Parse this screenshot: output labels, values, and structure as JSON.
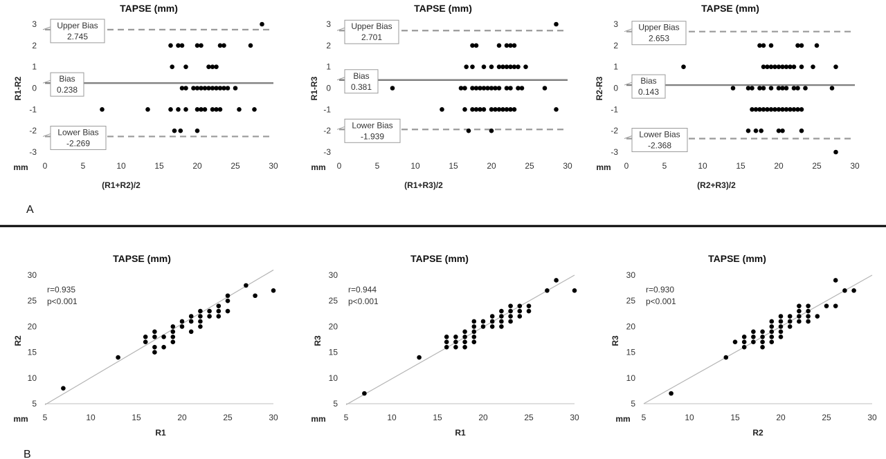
{
  "panel_labels": [
    "A",
    "B"
  ],
  "colors": {
    "points": "#000000",
    "bias_line": "#808080",
    "limit_line": "#999999",
    "fit_line": "#b4b4b4",
    "divider": "#000000"
  },
  "chart_data": [
    {
      "type": "scatter",
      "kind": "bland-altman",
      "title": "TAPSE (mm)",
      "xlabel": "(R1+R2)/2",
      "ylabel": "R1-R2",
      "unit_label": "mm",
      "xlim": [
        0,
        30
      ],
      "ylim": [
        -3,
        3
      ],
      "xticks": [
        "0",
        "5",
        "10",
        "15",
        "20",
        "25",
        "30"
      ],
      "yticks": [
        "-3",
        "-2",
        "-1",
        "0",
        "1",
        "2",
        "3"
      ],
      "bias_label": "Bias",
      "bias": "0.238",
      "upper_label": "Upper Bias",
      "upper": "2.745",
      "lower_label": "Lower Bias",
      "lower": "-2.269",
      "points": [
        [
          28.5,
          3
        ],
        [
          16.5,
          2
        ],
        [
          17.5,
          2
        ],
        [
          18,
          2
        ],
        [
          20,
          2
        ],
        [
          20.5,
          2
        ],
        [
          23,
          2
        ],
        [
          23.5,
          2
        ],
        [
          27,
          2
        ],
        [
          16.7,
          1
        ],
        [
          18.5,
          1
        ],
        [
          21.5,
          1
        ],
        [
          22,
          1
        ],
        [
          22.5,
          1
        ],
        [
          18,
          0
        ],
        [
          18.5,
          0
        ],
        [
          19.5,
          0
        ],
        [
          20,
          0
        ],
        [
          20.5,
          0
        ],
        [
          21,
          0
        ],
        [
          21.5,
          0
        ],
        [
          22,
          0
        ],
        [
          22.5,
          0
        ],
        [
          23,
          0
        ],
        [
          23.5,
          0
        ],
        [
          24,
          0
        ],
        [
          25,
          0
        ],
        [
          7.5,
          -1
        ],
        [
          13.5,
          -1
        ],
        [
          16.5,
          -1
        ],
        [
          17.5,
          -1
        ],
        [
          18.5,
          -1
        ],
        [
          20,
          -1
        ],
        [
          20.5,
          -1
        ],
        [
          21,
          -1
        ],
        [
          22,
          -1
        ],
        [
          22.5,
          -1
        ],
        [
          23,
          -1
        ],
        [
          25.5,
          -1
        ],
        [
          27.5,
          -1
        ],
        [
          17,
          -2
        ],
        [
          17.8,
          -2
        ],
        [
          20,
          -2
        ]
      ]
    },
    {
      "type": "scatter",
      "kind": "bland-altman",
      "title": "TAPSE (mm)",
      "xlabel": "(R1+R3)/2",
      "ylabel": "R1-R3",
      "unit_label": "mm",
      "xlim": [
        0,
        30
      ],
      "ylim": [
        -3,
        3
      ],
      "xticks": [
        "0",
        "5",
        "10",
        "15",
        "20",
        "25",
        "30"
      ],
      "yticks": [
        "-3",
        "-2",
        "-1",
        "0",
        "1",
        "2",
        "3"
      ],
      "bias_label": "Bias",
      "bias": "0.381",
      "upper_label": "Upper Bias",
      "upper": "2.701",
      "lower_label": "Lower Bias",
      "lower": "-1.939",
      "points": [
        [
          28.5,
          3
        ],
        [
          17.5,
          2
        ],
        [
          18,
          2
        ],
        [
          21,
          2
        ],
        [
          22,
          2
        ],
        [
          22.5,
          2
        ],
        [
          23,
          2
        ],
        [
          16.7,
          1
        ],
        [
          17.5,
          1
        ],
        [
          19,
          1
        ],
        [
          20,
          1
        ],
        [
          21,
          1
        ],
        [
          21.5,
          1
        ],
        [
          22,
          1
        ],
        [
          22.5,
          1
        ],
        [
          23,
          1
        ],
        [
          23.5,
          1
        ],
        [
          24.5,
          1
        ],
        [
          7,
          0
        ],
        [
          16,
          0
        ],
        [
          16.5,
          0
        ],
        [
          17.5,
          0
        ],
        [
          18,
          0
        ],
        [
          18.5,
          0
        ],
        [
          19,
          0
        ],
        [
          19.5,
          0
        ],
        [
          20,
          0
        ],
        [
          20.5,
          0
        ],
        [
          21,
          0
        ],
        [
          22,
          0
        ],
        [
          22.5,
          0
        ],
        [
          23.5,
          0
        ],
        [
          24,
          0
        ],
        [
          27,
          0
        ],
        [
          13.5,
          -1
        ],
        [
          16.5,
          -1
        ],
        [
          17.5,
          -1
        ],
        [
          18,
          -1
        ],
        [
          18.5,
          -1
        ],
        [
          19,
          -1
        ],
        [
          20,
          -1
        ],
        [
          20.5,
          -1
        ],
        [
          21,
          -1
        ],
        [
          21.5,
          -1
        ],
        [
          22,
          -1
        ],
        [
          22.5,
          -1
        ],
        [
          23,
          -1
        ],
        [
          28.5,
          -1
        ],
        [
          17,
          -2
        ],
        [
          20,
          -2
        ]
      ]
    },
    {
      "type": "scatter",
      "kind": "bland-altman",
      "title": "TAPSE (mm)",
      "xlabel": "(R2+R3)/2",
      "ylabel": "R2-R3",
      "unit_label": "mm",
      "xlim": [
        0,
        30
      ],
      "ylim": [
        -3,
        3
      ],
      "xticks": [
        "0",
        "5",
        "10",
        "15",
        "20",
        "25",
        "30"
      ],
      "yticks": [
        "-3",
        "-2",
        "-1",
        "0",
        "1",
        "2",
        "3"
      ],
      "bias_label": "Bias",
      "bias": "0.143",
      "upper_label": "Upper Bias",
      "upper": "2.653",
      "lower_label": "Lower Bias",
      "lower": "-2.368",
      "points": [
        [
          17.5,
          2
        ],
        [
          18,
          2
        ],
        [
          19,
          2
        ],
        [
          22.5,
          2
        ],
        [
          23,
          2
        ],
        [
          25,
          2
        ],
        [
          7.5,
          1
        ],
        [
          18,
          1
        ],
        [
          18.5,
          1
        ],
        [
          19,
          1
        ],
        [
          19.5,
          1
        ],
        [
          20,
          1
        ],
        [
          20.5,
          1
        ],
        [
          21,
          1
        ],
        [
          21.5,
          1
        ],
        [
          22,
          1
        ],
        [
          23,
          1
        ],
        [
          24.5,
          1
        ],
        [
          27.5,
          1
        ],
        [
          14,
          0
        ],
        [
          16,
          0
        ],
        [
          16.5,
          0
        ],
        [
          17.5,
          0
        ],
        [
          18,
          0
        ],
        [
          19,
          0
        ],
        [
          20,
          0
        ],
        [
          20.5,
          0
        ],
        [
          21,
          0
        ],
        [
          22,
          0
        ],
        [
          22.5,
          0
        ],
        [
          23.5,
          0
        ],
        [
          27,
          0
        ],
        [
          16.5,
          -1
        ],
        [
          17,
          -1
        ],
        [
          17.5,
          -1
        ],
        [
          18,
          -1
        ],
        [
          18.5,
          -1
        ],
        [
          19,
          -1
        ],
        [
          19.5,
          -1
        ],
        [
          20,
          -1
        ],
        [
          20.5,
          -1
        ],
        [
          21,
          -1
        ],
        [
          21.5,
          -1
        ],
        [
          22,
          -1
        ],
        [
          22.5,
          -1
        ],
        [
          23,
          -1
        ],
        [
          16,
          -2
        ],
        [
          17,
          -2
        ],
        [
          17.7,
          -2
        ],
        [
          20,
          -2
        ],
        [
          20.5,
          -2
        ],
        [
          23,
          -2
        ],
        [
          27.5,
          -3
        ]
      ]
    },
    {
      "type": "scatter",
      "kind": "correlation",
      "title": "TAPSE (mm)",
      "xlabel": "R1",
      "ylabel": "R2",
      "unit_label": "mm",
      "xlim": [
        5,
        30
      ],
      "ylim": [
        5,
        30
      ],
      "xticks": [
        "5",
        "10",
        "15",
        "20",
        "25",
        "30"
      ],
      "yticks": [
        "5",
        "10",
        "15",
        "20",
        "25",
        "30"
      ],
      "stat_r": "r=0.935",
      "stat_p": "p<0.001",
      "fit": [
        [
          5,
          4.8
        ],
        [
          30,
          31
        ]
      ],
      "points": [
        [
          7,
          8
        ],
        [
          13,
          14
        ],
        [
          16,
          17
        ],
        [
          16,
          18
        ],
        [
          17,
          15
        ],
        [
          17,
          16
        ],
        [
          17,
          18
        ],
        [
          17,
          19
        ],
        [
          18,
          16
        ],
        [
          18,
          18
        ],
        [
          19,
          17
        ],
        [
          19,
          18
        ],
        [
          19,
          19
        ],
        [
          19,
          20
        ],
        [
          20,
          20
        ],
        [
          20,
          21
        ],
        [
          21,
          19
        ],
        [
          21,
          21
        ],
        [
          21,
          22
        ],
        [
          22,
          20
        ],
        [
          22,
          21
        ],
        [
          22,
          22
        ],
        [
          22,
          23
        ],
        [
          23,
          22
        ],
        [
          23,
          23
        ],
        [
          24,
          22
        ],
        [
          24,
          23
        ],
        [
          24,
          24
        ],
        [
          25,
          23
        ],
        [
          25,
          25
        ],
        [
          25,
          26
        ],
        [
          27,
          28
        ],
        [
          28,
          26
        ],
        [
          30,
          27
        ]
      ]
    },
    {
      "type": "scatter",
      "kind": "correlation",
      "title": "TAPSE (mm)",
      "xlabel": "R1",
      "ylabel": "R3",
      "unit_label": "mm",
      "xlim": [
        5,
        30
      ],
      "ylim": [
        5,
        30
      ],
      "xticks": [
        "5",
        "10",
        "15",
        "20",
        "25",
        "30"
      ],
      "yticks": [
        "5",
        "10",
        "15",
        "20",
        "25",
        "30"
      ],
      "stat_r": "r=0.944",
      "stat_p": "p<0.001",
      "fit": [
        [
          5,
          4.8
        ],
        [
          30,
          30
        ]
      ],
      "points": [
        [
          7,
          7
        ],
        [
          13,
          14
        ],
        [
          16,
          16
        ],
        [
          16,
          17
        ],
        [
          16,
          18
        ],
        [
          17,
          16
        ],
        [
          17,
          17
        ],
        [
          17,
          18
        ],
        [
          18,
          16
        ],
        [
          18,
          17
        ],
        [
          18,
          18
        ],
        [
          18,
          19
        ],
        [
          19,
          17
        ],
        [
          19,
          18
        ],
        [
          19,
          19
        ],
        [
          19,
          20
        ],
        [
          19,
          21
        ],
        [
          20,
          20
        ],
        [
          20,
          21
        ],
        [
          21,
          20
        ],
        [
          21,
          21
        ],
        [
          21,
          22
        ],
        [
          22,
          20
        ],
        [
          22,
          21
        ],
        [
          22,
          22
        ],
        [
          22,
          23
        ],
        [
          23,
          21
        ],
        [
          23,
          22
        ],
        [
          23,
          23
        ],
        [
          23,
          24
        ],
        [
          24,
          22
        ],
        [
          24,
          23
        ],
        [
          24,
          24
        ],
        [
          25,
          23
        ],
        [
          25,
          24
        ],
        [
          27,
          27
        ],
        [
          28,
          29
        ],
        [
          30,
          27
        ]
      ]
    },
    {
      "type": "scatter",
      "kind": "correlation",
      "title": "TAPSE (mm)",
      "xlabel": "R2",
      "ylabel": "R3",
      "unit_label": "mm",
      "xlim": [
        5,
        30
      ],
      "ylim": [
        5,
        30
      ],
      "xticks": [
        "5",
        "10",
        "15",
        "20",
        "25",
        "30"
      ],
      "yticks": [
        "5",
        "10",
        "15",
        "20",
        "25",
        "30"
      ],
      "stat_r": "r=0.930",
      "stat_p": "p<0.001",
      "fit": [
        [
          5,
          5
        ],
        [
          30,
          30
        ]
      ],
      "points": [
        [
          8,
          7
        ],
        [
          14,
          14
        ],
        [
          15,
          17
        ],
        [
          16,
          16
        ],
        [
          16,
          17
        ],
        [
          16,
          18
        ],
        [
          17,
          17
        ],
        [
          17,
          18
        ],
        [
          17,
          19
        ],
        [
          18,
          16
        ],
        [
          18,
          17
        ],
        [
          18,
          18
        ],
        [
          18,
          19
        ],
        [
          19,
          17
        ],
        [
          19,
          18
        ],
        [
          19,
          19
        ],
        [
          19,
          20
        ],
        [
          19,
          21
        ],
        [
          20,
          18
        ],
        [
          20,
          19
        ],
        [
          20,
          20
        ],
        [
          20,
          21
        ],
        [
          20,
          22
        ],
        [
          21,
          20
        ],
        [
          21,
          21
        ],
        [
          21,
          22
        ],
        [
          22,
          21
        ],
        [
          22,
          22
        ],
        [
          22,
          23
        ],
        [
          22,
          24
        ],
        [
          23,
          21
        ],
        [
          23,
          22
        ],
        [
          23,
          23
        ],
        [
          23,
          24
        ],
        [
          24,
          22
        ],
        [
          25,
          24
        ],
        [
          26,
          24
        ],
        [
          26,
          29
        ],
        [
          27,
          27
        ],
        [
          28,
          27
        ]
      ]
    }
  ]
}
